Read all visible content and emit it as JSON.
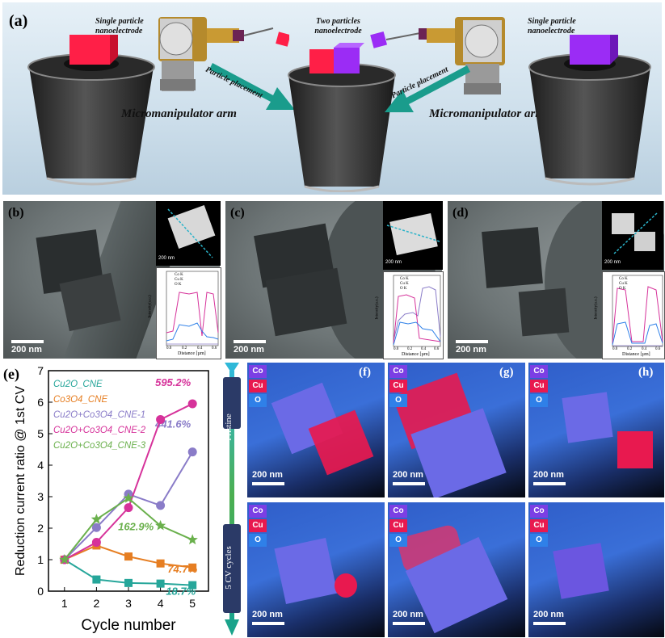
{
  "panel_a": {
    "label": "(a)",
    "single_particle_left": "Single particle nanoelectrode",
    "two_particles": "Two particles nanoelectrode",
    "single_particle_right": "Single particle nanoelectrode",
    "particle_placement": "Particle placement",
    "micromanipulator": "Micromanipulator arm"
  },
  "panels_tem": [
    {
      "label": "(b)",
      "scale": "200 nm",
      "inset_scale": "200 nm",
      "legend": [
        "Co K",
        "Cu K",
        "O K"
      ],
      "ylabel": "Intensity(a.u.)",
      "xlabel": "Distance [µm]",
      "xticks": [
        "0.0",
        "0.2",
        "0.4",
        "0.6"
      ]
    },
    {
      "label": "(c)",
      "scale": "200 nm",
      "inset_scale": "200 nm",
      "legend": [
        "Co K",
        "Cu K",
        "O K"
      ],
      "ylabel": "Intensity(a.u.)",
      "xlabel": "Distance [µm]",
      "xticks": [
        "0.0",
        "0.2",
        "0.4",
        "0.6"
      ]
    },
    {
      "label": "(d)",
      "scale": "200 nm",
      "inset_scale": "200 nm",
      "legend": [
        "Co K",
        "Cu K",
        "O K"
      ],
      "ylabel": "Intensity(a.u.)",
      "xlabel": "Distance [µm]",
      "xticks": [
        "0.0",
        "0.2",
        "0.4",
        "0.6"
      ]
    }
  ],
  "chart_data": {
    "type": "line",
    "label": "(e)",
    "xlabel": "Cycle number",
    "ylabel": "Reduction current ratio @ 1st CV",
    "x": [
      1,
      2,
      3,
      4,
      5
    ],
    "xlim": [
      0.5,
      5.5
    ],
    "ylim": [
      0,
      7
    ],
    "yticks": [
      0,
      1,
      2,
      3,
      4,
      5,
      6,
      7
    ],
    "series": [
      {
        "name": "Cu2O_CNE",
        "color": "#26a69a",
        "marker": "square",
        "values": [
          1.0,
          0.37,
          0.26,
          0.24,
          0.19
        ],
        "end_label": "18.7%"
      },
      {
        "name": "Co3O4_CNE",
        "color": "#e67e22",
        "marker": "square",
        "values": [
          1.0,
          1.45,
          1.1,
          0.88,
          0.75
        ],
        "end_label": "74.7%"
      },
      {
        "name": "Cu2O+Co3O4_CNE-1",
        "color": "#8a7cc8",
        "marker": "circle",
        "values": [
          1.0,
          2.02,
          3.08,
          2.72,
          4.42
        ],
        "end_label": "441.6%"
      },
      {
        "name": "Cu2O+Co3O4_CNE-2",
        "color": "#d6329a",
        "marker": "circle",
        "values": [
          1.0,
          1.55,
          2.65,
          5.45,
          5.95
        ],
        "end_label": "595.2%"
      },
      {
        "name": "Cu2O+Co3O4_CNE-3",
        "color": "#6ab04c",
        "marker": "star",
        "values": [
          1.0,
          2.28,
          2.95,
          2.08,
          1.63
        ],
        "end_label": "162.9%"
      }
    ]
  },
  "timeline": {
    "pristine": "Pristine",
    "cycles": "5 CV cycles"
  },
  "maps": {
    "legend": [
      "Co",
      "Cu",
      "O"
    ],
    "legend_colors": [
      "#7b3fe4",
      "#e8194f",
      "#2f80e8"
    ],
    "panels": [
      {
        "label": "(f)",
        "scale": "200 nm"
      },
      {
        "label": "(g)",
        "scale": "200 nm"
      },
      {
        "label": "(h)",
        "scale": "200 nm"
      },
      {
        "label": "",
        "scale": "200 nm"
      },
      {
        "label": "",
        "scale": "200 nm"
      },
      {
        "label": "",
        "scale": "200 nm"
      }
    ]
  }
}
